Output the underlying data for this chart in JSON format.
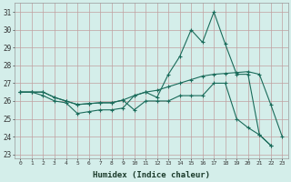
{
  "xlabel": "Humidex (Indice chaleur)",
  "ylabel": "",
  "xlim": [
    -0.5,
    23.5
  ],
  "ylim": [
    22.8,
    31.5
  ],
  "yticks": [
    23,
    24,
    25,
    26,
    27,
    28,
    29,
    30,
    31
  ],
  "xticks": [
    0,
    1,
    2,
    3,
    4,
    5,
    6,
    7,
    8,
    9,
    10,
    11,
    12,
    13,
    14,
    15,
    16,
    17,
    18,
    19,
    20,
    21,
    22,
    23
  ],
  "background_color": "#d4eeea",
  "grid_color": "#c0a0a0",
  "line_color": "#1a6b5a",
  "line1_y": [
    26.5,
    26.5,
    26.5,
    26.2,
    26.0,
    25.8,
    25.85,
    25.9,
    25.9,
    26.05,
    26.3,
    26.5,
    26.6,
    26.8,
    27.0,
    27.2,
    27.4,
    27.5,
    27.55,
    27.6,
    27.65,
    27.5,
    25.8,
    24.0
  ],
  "line2_y": [
    26.5,
    26.5,
    26.3,
    26.0,
    25.9,
    25.3,
    25.4,
    25.5,
    25.5,
    25.6,
    26.3,
    26.5,
    26.2,
    27.5,
    28.5,
    30.0,
    29.3,
    31.0,
    29.2,
    27.5,
    27.5,
    24.1,
    23.5,
    null
  ],
  "line3_y": [
    26.5,
    26.5,
    26.5,
    26.2,
    26.0,
    25.8,
    25.85,
    25.9,
    25.9,
    26.05,
    25.5,
    26.0,
    26.0,
    26.0,
    26.3,
    26.3,
    26.3,
    27.0,
    27.0,
    25.0,
    24.5,
    24.1,
    23.5,
    null
  ]
}
